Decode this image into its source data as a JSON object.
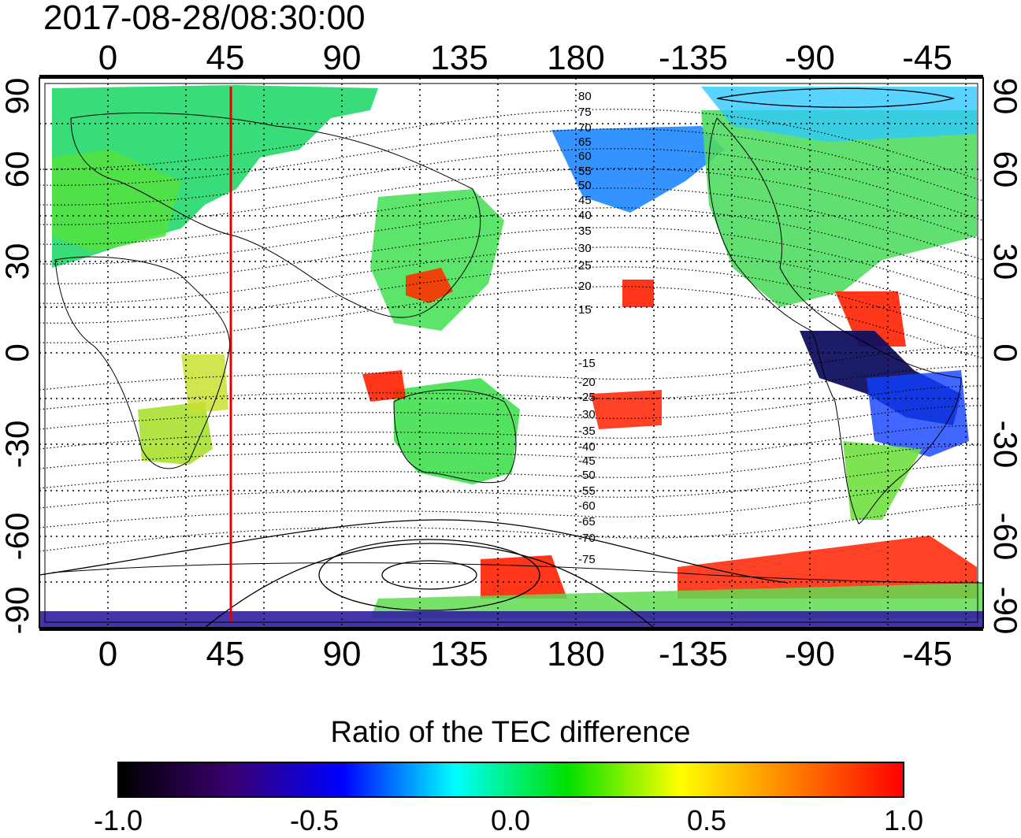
{
  "timestamp": "2017-08-28/08:30:00",
  "axes": {
    "top_lon_ticks": [
      "0",
      "45",
      "90",
      "135",
      "180",
      "-135",
      "-90",
      "-45"
    ],
    "bottom_lon_ticks": [
      "0",
      "45",
      "90",
      "135",
      "180",
      "-135",
      "-90",
      "-45"
    ],
    "left_lat_ticks": [
      "90",
      "60",
      "30",
      "0",
      "-30",
      "-60",
      "-90"
    ],
    "right_lat_ticks": [
      "90",
      "60",
      "30",
      "0",
      "-30",
      "-60",
      "-90"
    ],
    "lon_range": [
      -20,
      330
    ],
    "lat_range": [
      -90,
      90
    ]
  },
  "contour_labels": [
    "80",
    "75",
    "70",
    "65",
    "60",
    "55",
    "50",
    "45",
    "40",
    "35",
    "30",
    "25",
    "20",
    "15",
    "-15",
    "-20",
    "-25",
    "-30",
    "-35",
    "-40",
    "-45",
    "-50",
    "-55",
    "-60",
    "-65",
    "-70",
    "-75"
  ],
  "marker_line": {
    "longitude": 51,
    "color": "#e00000"
  },
  "colorbar": {
    "title": "Ratio of the TEC difference",
    "ticks": [
      "-1.0",
      "-0.5",
      "0.0",
      "0.5",
      "1.0"
    ],
    "range": [
      -1.0,
      1.0
    ],
    "colors": [
      "#000000",
      "#3a0070",
      "#0000ff",
      "#00ffff",
      "#00e000",
      "#ffff00",
      "#ff8000",
      "#ff0000"
    ]
  }
}
